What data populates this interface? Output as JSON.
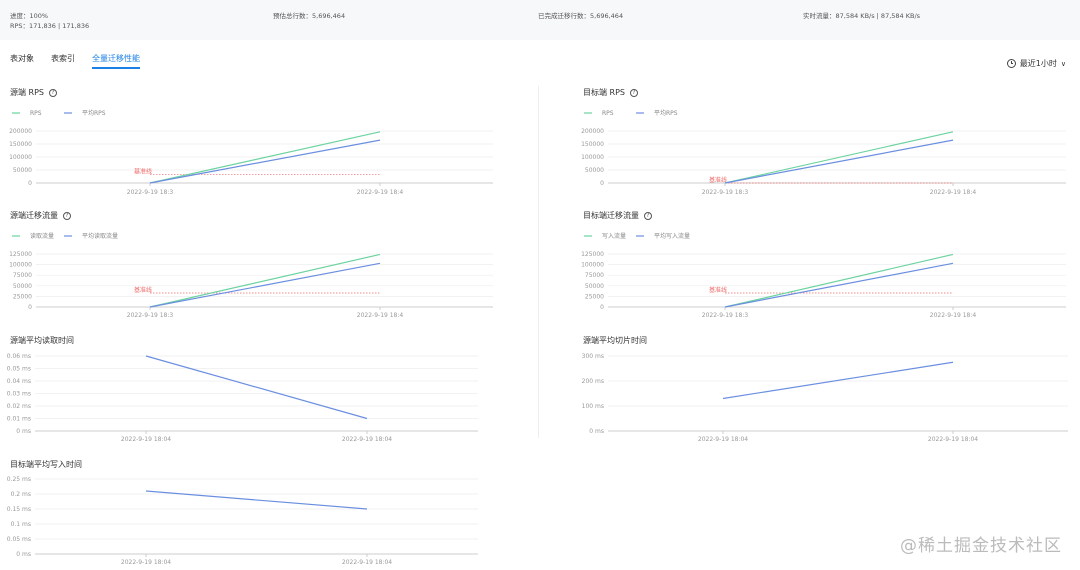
{
  "summary": {
    "progress": "进度：100%",
    "rps": "RPS：171,836 | 171,836",
    "estimated_rows": "预估总行数：5,696,464",
    "completed_rows": "已完成迁移行数：5,696,464",
    "realtime_flow": "实时流量：87,584 KB/s | 87,584 KB/s"
  },
  "tabs": [
    {
      "label": "表对象",
      "active": false
    },
    {
      "label": "表索引",
      "active": false
    },
    {
      "label": "全量迁移性能",
      "active": true
    }
  ],
  "time_range": {
    "label": "最近1小时",
    "icon": "clock-icon"
  },
  "colors": {
    "accent": "#1a7fe6",
    "green": "#6cd3a0",
    "blue": "#6b8fe0",
    "baseline": "#f06a6a"
  },
  "watermark": "@稀土掘金技术社区",
  "chart_data": [
    {
      "type": "line",
      "title": "源端 RPS",
      "help": true,
      "legend": [
        "RPS",
        "平均RPS"
      ],
      "categories": [
        "2022-9-19 18:3",
        "2022-9-19 18:4"
      ],
      "yticks": [
        "0",
        "50000",
        "100000",
        "150000",
        "200000"
      ],
      "ylim": [
        0,
        200000
      ],
      "series": [
        {
          "name": "RPS",
          "color": "#6cd3a0",
          "values": [
            0,
            197000
          ]
        },
        {
          "name": "平均RPS",
          "color": "#6b8fe0",
          "values": [
            0,
            165000
          ]
        }
      ],
      "baseline": {
        "label": "基准线",
        "value": 33000
      }
    },
    {
      "type": "line",
      "title": "目标端 RPS",
      "help": true,
      "legend": [
        "RPS",
        "平均RPS"
      ],
      "categories": [
        "2022-9-19 18:3",
        "2022-9-19 18:4"
      ],
      "yticks": [
        "0",
        "50000",
        "100000",
        "150000",
        "200000"
      ],
      "ylim": [
        0,
        200000
      ],
      "series": [
        {
          "name": "RPS",
          "color": "#6cd3a0",
          "values": [
            0,
            197000
          ]
        },
        {
          "name": "平均RPS",
          "color": "#6b8fe0",
          "values": [
            0,
            165000
          ]
        }
      ],
      "baseline": {
        "label": "基准线",
        "value": 0
      }
    },
    {
      "type": "line",
      "title": "源端迁移流量",
      "help": true,
      "legend": [
        "读取流量",
        "平均读取流量"
      ],
      "categories": [
        "2022-9-19 18:3",
        "2022-9-19 18:4"
      ],
      "yticks": [
        "0",
        "25000",
        "50000",
        "75000",
        "100000",
        "125000"
      ],
      "ylim": [
        0,
        125000
      ],
      "series": [
        {
          "name": "读取流量",
          "color": "#6cd3a0",
          "values": [
            0,
            124000
          ]
        },
        {
          "name": "平均读取流量",
          "color": "#6b8fe0",
          "values": [
            0,
            103000
          ]
        }
      ],
      "baseline": {
        "label": "基准线",
        "value": 33000
      }
    },
    {
      "type": "line",
      "title": "目标端迁移流量",
      "help": true,
      "legend": [
        "写入流量",
        "平均写入流量"
      ],
      "categories": [
        "2022-9-19 18:3",
        "2022-9-19 18:4"
      ],
      "yticks": [
        "0",
        "25000",
        "50000",
        "75000",
        "100000",
        "125000"
      ],
      "ylim": [
        0,
        125000
      ],
      "series": [
        {
          "name": "写入流量",
          "color": "#6cd3a0",
          "values": [
            0,
            124000
          ]
        },
        {
          "name": "平均写入流量",
          "color": "#6b8fe0",
          "values": [
            0,
            103000
          ]
        }
      ],
      "baseline": {
        "label": "基准线",
        "value": 33000
      }
    },
    {
      "type": "line",
      "title": "源端平均读取时间",
      "help": false,
      "categories": [
        "2022-9-19 18:04",
        "2022-9-19 18:04"
      ],
      "yticks": [
        "0 ms",
        "0.01 ms",
        "0.02 ms",
        "0.03 ms",
        "0.04 ms",
        "0.05 ms",
        "0.06 ms"
      ],
      "ylim": [
        0,
        0.06
      ],
      "series": [
        {
          "color": "#6b8fe0",
          "values": [
            0.06,
            0.01
          ]
        }
      ]
    },
    {
      "type": "line",
      "title": "源端平均切片时间",
      "help": false,
      "categories": [
        "2022-9-19 18:04",
        "2022-9-19 18:04"
      ],
      "yticks": [
        "0 ms",
        "100 ms",
        "200 ms",
        "300 ms"
      ],
      "ylim": [
        0,
        300
      ],
      "series": [
        {
          "color": "#6b8fe0",
          "values": [
            130,
            275
          ]
        }
      ]
    },
    {
      "type": "line",
      "title": "目标端平均写入时间",
      "help": false,
      "categories": [
        "2022-9-19 18:04",
        "2022-9-19 18:04"
      ],
      "yticks": [
        "0 ms",
        "0.05 ms",
        "0.1 ms",
        "0.15 ms",
        "0.2 ms",
        "0.25 ms"
      ],
      "ylim": [
        0,
        0.25
      ],
      "series": [
        {
          "color": "#6b8fe0",
          "values": [
            0.21,
            0.15
          ]
        }
      ]
    }
  ]
}
